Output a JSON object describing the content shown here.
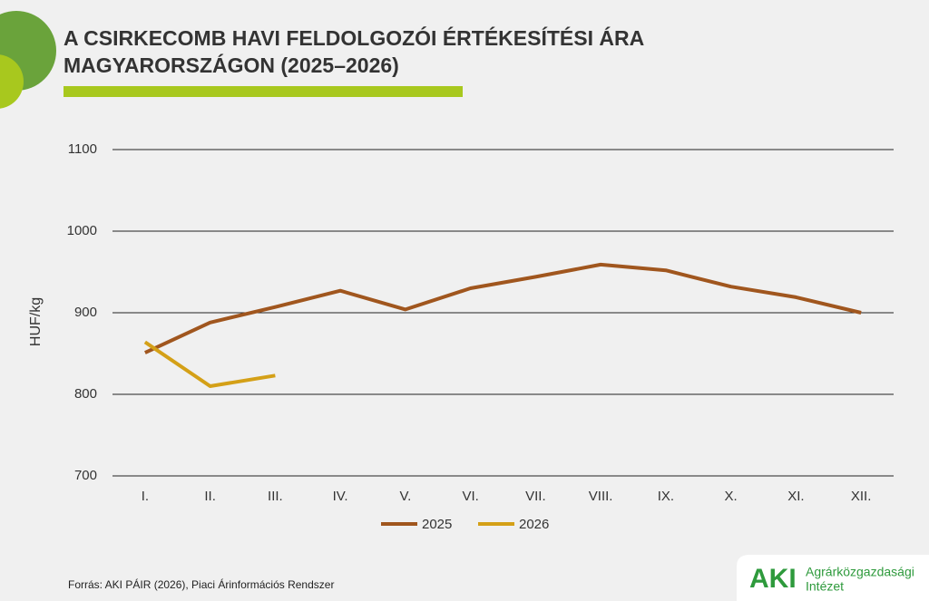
{
  "chart_data": {
    "type": "line",
    "title": [
      "A CSIRKECOMB HAVI FELDOLGOZÓI ÉRTÉKESÍTÉSI ÁRA",
      "MAGYARORSZÁGON (2025–2026)"
    ],
    "y_label": "HUF/kg",
    "categories": [
      "I.",
      "II.",
      "III.",
      "IV.",
      "V.",
      "VI.",
      "VII.",
      "VIII.",
      "IX.",
      "X.",
      "XI.",
      "XII."
    ],
    "series": [
      {
        "name": "2025",
        "color": "#a0561e",
        "values": [
          851,
          888,
          907,
          927,
          904,
          930,
          944,
          959,
          952,
          932,
          919,
          900
        ]
      },
      {
        "name": "2026",
        "color": "#d4a017",
        "values": [
          864,
          810,
          823,
          null,
          null,
          null,
          null,
          null,
          null,
          null,
          null,
          null
        ]
      }
    ],
    "ylim": [
      700,
      1100
    ],
    "yticks": [
      700,
      800,
      900,
      1000,
      1100
    ],
    "grid": true,
    "source": "Forrás: AKI PÁIR (2026), Piaci Árinformációs Rendszer"
  },
  "logo": {
    "mark": "AKI",
    "line1": "Agrárközgazdasági",
    "line2": "Intézet"
  }
}
